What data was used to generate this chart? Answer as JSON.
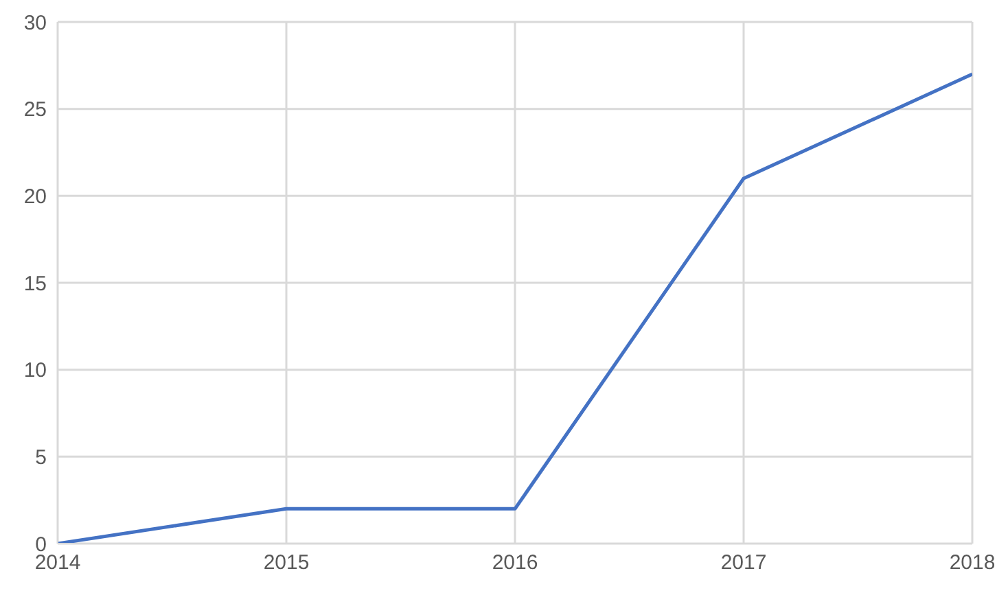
{
  "chart_data": {
    "type": "line",
    "x": [
      2014,
      2015,
      2016,
      2017,
      2018
    ],
    "values": [
      0,
      2,
      2,
      21,
      27
    ],
    "color": "#4472c4",
    "xlim": [
      2014,
      2018
    ],
    "xticks": [
      2014,
      2015,
      2016,
      2017,
      2018
    ],
    "ylim": [
      0,
      30
    ],
    "yticks": [
      0,
      5,
      10,
      15,
      20,
      25,
      30
    ],
    "grid": true,
    "marker": "none"
  }
}
